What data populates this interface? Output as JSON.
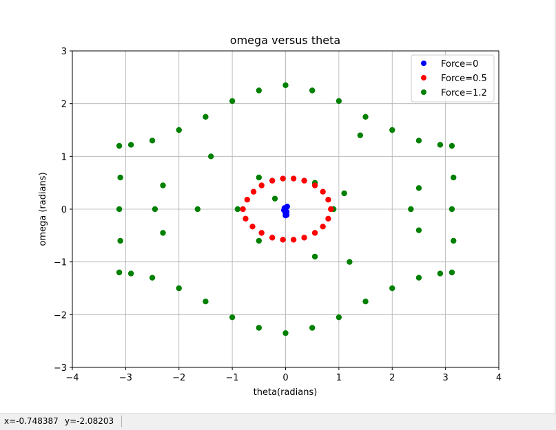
{
  "chart_data": {
    "type": "scatter",
    "title": "omega versus theta",
    "xlabel": "theta(radians)",
    "ylabel": "omega (radians)",
    "xlim": [
      -4,
      4
    ],
    "ylim": [
      -3,
      3
    ],
    "xticks": [
      "−4",
      "−3",
      "−2",
      "−1",
      "0",
      "1",
      "2",
      "3",
      "4"
    ],
    "yticks": [
      "−3",
      "−2",
      "−1",
      "0",
      "1",
      "2",
      "3"
    ],
    "xtick_values": [
      -4,
      -3,
      -2,
      -1,
      0,
      1,
      2,
      3,
      4
    ],
    "ytick_values": [
      -3,
      -2,
      -1,
      0,
      1,
      2,
      3
    ],
    "grid": true,
    "legend_position": "top-right",
    "series": [
      {
        "name": "Force=0",
        "color": "#0000ff",
        "points": [
          [
            0.0,
            -0.12
          ],
          [
            0.02,
            -0.05
          ],
          [
            -0.02,
            0.02
          ],
          [
            0.03,
            0.05
          ],
          [
            0.0,
            -0.08
          ],
          [
            -0.03,
            -0.02
          ],
          [
            0.02,
            -0.11
          ]
        ]
      },
      {
        "name": "Force=0.5",
        "color": "#ff0000",
        "points": [
          [
            0.85,
            0.0
          ],
          [
            0.8,
            0.18
          ],
          [
            0.7,
            0.33
          ],
          [
            0.55,
            0.45
          ],
          [
            0.35,
            0.54
          ],
          [
            0.15,
            0.58
          ],
          [
            -0.05,
            0.58
          ],
          [
            -0.25,
            0.54
          ],
          [
            -0.45,
            0.45
          ],
          [
            -0.6,
            0.33
          ],
          [
            -0.72,
            0.18
          ],
          [
            -0.8,
            0.0
          ],
          [
            -0.75,
            -0.18
          ],
          [
            -0.62,
            -0.33
          ],
          [
            -0.45,
            -0.45
          ],
          [
            -0.25,
            -0.54
          ],
          [
            -0.05,
            -0.58
          ],
          [
            0.15,
            -0.58
          ],
          [
            0.35,
            -0.54
          ],
          [
            0.55,
            -0.45
          ],
          [
            0.7,
            -0.33
          ],
          [
            0.8,
            -0.18
          ]
        ]
      },
      {
        "name": "Force=1.2",
        "color": "#008000",
        "points": [
          [
            -3.12,
            1.2
          ],
          [
            -3.1,
            0.6
          ],
          [
            -3.12,
            0.0
          ],
          [
            -3.1,
            -0.6
          ],
          [
            -3.12,
            -1.2
          ],
          [
            -2.9,
            1.22
          ],
          [
            -2.9,
            -1.22
          ],
          [
            -2.5,
            1.3
          ],
          [
            -2.5,
            -1.3
          ],
          [
            -2.0,
            1.5
          ],
          [
            -2.0,
            -1.5
          ],
          [
            -1.5,
            1.75
          ],
          [
            -1.5,
            -1.75
          ],
          [
            -1.0,
            2.05
          ],
          [
            -1.0,
            -2.05
          ],
          [
            -0.5,
            2.25
          ],
          [
            -0.5,
            -2.25
          ],
          [
            0.0,
            2.35
          ],
          [
            0.0,
            -2.35
          ],
          [
            0.5,
            2.25
          ],
          [
            0.5,
            -2.25
          ],
          [
            1.0,
            2.05
          ],
          [
            1.0,
            -2.05
          ],
          [
            1.5,
            1.75
          ],
          [
            1.5,
            -1.75
          ],
          [
            2.0,
            1.5
          ],
          [
            2.0,
            -1.5
          ],
          [
            2.5,
            1.3
          ],
          [
            2.5,
            -1.3
          ],
          [
            2.9,
            1.22
          ],
          [
            2.9,
            -1.22
          ],
          [
            3.12,
            1.2
          ],
          [
            3.15,
            0.6
          ],
          [
            3.12,
            0.0
          ],
          [
            3.15,
            -0.6
          ],
          [
            3.12,
            -1.2
          ],
          [
            -2.3,
            0.45
          ],
          [
            -2.45,
            0.0
          ],
          [
            -2.3,
            -0.45
          ],
          [
            2.5,
            0.4
          ],
          [
            2.35,
            0.0
          ],
          [
            2.5,
            -0.4
          ],
          [
            -0.9,
            0.0
          ],
          [
            -0.5,
            0.6
          ],
          [
            -0.2,
            0.2
          ],
          [
            -0.5,
            -0.6
          ],
          [
            0.55,
            0.5
          ],
          [
            0.9,
            0.0
          ],
          [
            0.55,
            -0.9
          ],
          [
            1.1,
            0.3
          ],
          [
            1.4,
            1.4
          ],
          [
            -1.4,
            1.0
          ],
          [
            -1.65,
            0.0
          ],
          [
            1.2,
            -1.0
          ]
        ]
      }
    ]
  },
  "status": {
    "x_text": "x=-0.748387",
    "y_text": "y=-2.08203"
  }
}
